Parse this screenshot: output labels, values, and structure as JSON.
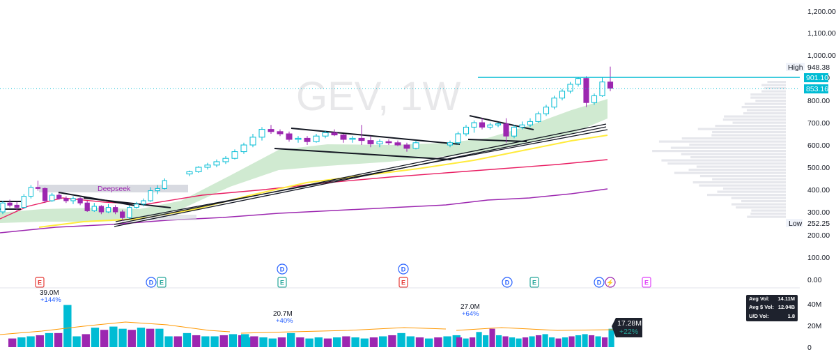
{
  "chart_data": {
    "type": "candlestick",
    "symbol_watermark": "GEV, 1W",
    "price_axis": {
      "ticks": [
        1200,
        1100,
        1000,
        900,
        800,
        700,
        600,
        500,
        400,
        300,
        200,
        100,
        0
      ],
      "tick_labels": [
        "1,200.00",
        "1,100.00",
        "1,000.00",
        "900.00",
        "800.00",
        "700.00",
        "600.00",
        "500.00",
        "400.00",
        "300.00",
        "200.00",
        "100.00",
        "0.00"
      ],
      "scale": "log"
    },
    "markers": {
      "high": {
        "label": "High",
        "value": "948.38"
      },
      "low": {
        "label": "Low",
        "value": "252.25"
      },
      "price_901": "901.10",
      "price_last": "853.16"
    },
    "colors": {
      "up": "#00bcd4",
      "down": "#9c27b0",
      "ema_fill": "#c8e6c9",
      "yellow_ma": "#ffeb3b",
      "red_ma": "#e91e63",
      "purple_ma": "#9c27b0",
      "trendline": "#131722",
      "last_price": "#00bcd4"
    },
    "candles_segment1": [
      [
        300,
        350,
        290,
        340
      ],
      [
        340,
        355,
        320,
        330
      ],
      [
        330,
        345,
        305,
        320
      ],
      [
        320,
        380,
        315,
        370
      ],
      [
        370,
        420,
        360,
        410
      ],
      [
        410,
        440,
        395,
        405
      ],
      [
        405,
        410,
        340,
        350
      ],
      [
        350,
        385,
        345,
        375
      ],
      [
        375,
        385,
        355,
        360
      ],
      [
        360,
        370,
        340,
        350
      ],
      [
        350,
        370,
        335,
        360
      ],
      [
        360,
        365,
        330,
        340
      ],
      [
        340,
        350,
        300,
        305
      ],
      [
        305,
        340,
        300,
        325
      ],
      [
        325,
        330,
        290,
        300
      ],
      [
        300,
        335,
        295,
        320
      ],
      [
        320,
        330,
        290,
        300
      ],
      [
        300,
        310,
        260,
        275
      ],
      [
        275,
        330,
        270,
        320
      ],
      [
        320,
        345,
        315,
        335
      ],
      [
        335,
        360,
        325,
        350
      ],
      [
        350,
        410,
        345,
        395
      ],
      [
        395,
        420,
        380,
        405
      ],
      [
        405,
        450,
        400,
        440
      ]
    ],
    "candles_segment2": [
      [
        470,
        485,
        460,
        480
      ],
      [
        480,
        505,
        475,
        500
      ],
      [
        500,
        520,
        490,
        510
      ],
      [
        510,
        535,
        500,
        525
      ],
      [
        525,
        550,
        515,
        540
      ],
      [
        540,
        580,
        535,
        570
      ],
      [
        570,
        610,
        560,
        600
      ],
      [
        600,
        650,
        590,
        635
      ],
      [
        635,
        680,
        620,
        670
      ],
      [
        670,
        690,
        650,
        660
      ],
      [
        660,
        670,
        640,
        650
      ],
      [
        650,
        660,
        615,
        625
      ],
      [
        625,
        640,
        610,
        630
      ],
      [
        630,
        640,
        600,
        615
      ],
      [
        615,
        650,
        610,
        640
      ],
      [
        640,
        665,
        630,
        655
      ],
      [
        655,
        670,
        640,
        645
      ],
      [
        645,
        650,
        610,
        625
      ],
      [
        625,
        640,
        610,
        630
      ],
      [
        630,
        690,
        600,
        620
      ],
      [
        620,
        640,
        590,
        605
      ],
      [
        605,
        625,
        590,
        615
      ],
      [
        615,
        625,
        600,
        610
      ],
      [
        610,
        620,
        595,
        600
      ],
      [
        600,
        610,
        570,
        585
      ],
      [
        585,
        620,
        580,
        610
      ]
    ],
    "candles_segment3": [
      [
        600,
        620,
        590,
        610
      ],
      [
        610,
        660,
        600,
        650
      ],
      [
        650,
        690,
        640,
        680
      ],
      [
        680,
        710,
        655,
        700
      ],
      [
        700,
        720,
        670,
        680
      ],
      [
        680,
        700,
        670,
        690
      ],
      [
        690,
        700,
        680,
        695
      ],
      [
        695,
        720,
        610,
        640
      ],
      [
        640,
        690,
        630,
        680
      ],
      [
        680,
        705,
        670,
        690
      ],
      [
        690,
        720,
        680,
        705
      ],
      [
        705,
        750,
        700,
        740
      ],
      [
        740,
        780,
        730,
        770
      ],
      [
        770,
        820,
        760,
        810
      ],
      [
        810,
        850,
        800,
        840
      ],
      [
        840,
        880,
        830,
        870
      ],
      [
        870,
        900,
        860,
        895
      ],
      [
        895,
        905,
        770,
        790
      ],
      [
        790,
        830,
        780,
        820
      ],
      [
        820,
        900,
        815,
        880
      ],
      [
        880,
        948,
        840,
        853
      ]
    ],
    "volume_axis": {
      "ticks": [
        40,
        20,
        0
      ],
      "tick_labels": [
        "40M",
        "20M",
        "0"
      ]
    },
    "volume_segment1": [
      8,
      9,
      10,
      11,
      13,
      13,
      39,
      10,
      12,
      18,
      16,
      19,
      17,
      16,
      18,
      17,
      17,
      10,
      10,
      13,
      11,
      10,
      10,
      11,
      12,
      11,
      9
    ],
    "volume_segment2": [
      12,
      10,
      9,
      8,
      9,
      13,
      9,
      8,
      9,
      8,
      9,
      10,
      9,
      8,
      9,
      10,
      11,
      13,
      10,
      9,
      8,
      9,
      10,
      11
    ],
    "volume_segment3": [
      9,
      8,
      9,
      14,
      11,
      17,
      11,
      10,
      9,
      8,
      9,
      10,
      11,
      12,
      9,
      8,
      9,
      10,
      11,
      12,
      11,
      10,
      9,
      17
    ],
    "volume_labels": [
      {
        "value": "39.0M",
        "change": "+144%"
      },
      {
        "value": "20.7M",
        "change": "+40%"
      },
      {
        "value": "27.0M",
        "change": "+64%"
      }
    ],
    "current_volume": {
      "value": "17.28M",
      "change": "+22%"
    },
    "annotation_text": "Deepseek",
    "event_markers": [
      "E",
      "D",
      "E",
      "D",
      "E",
      "D",
      "E",
      "D",
      "E",
      "D",
      "⚡",
      "E"
    ],
    "vol_stats": [
      {
        "label": "Avg Vol:",
        "value": "14.11M"
      },
      {
        "label": "Avg $ Vol:",
        "value": "12.04B"
      },
      {
        "label": "U/D Vol:",
        "value": "1.8"
      }
    ]
  }
}
